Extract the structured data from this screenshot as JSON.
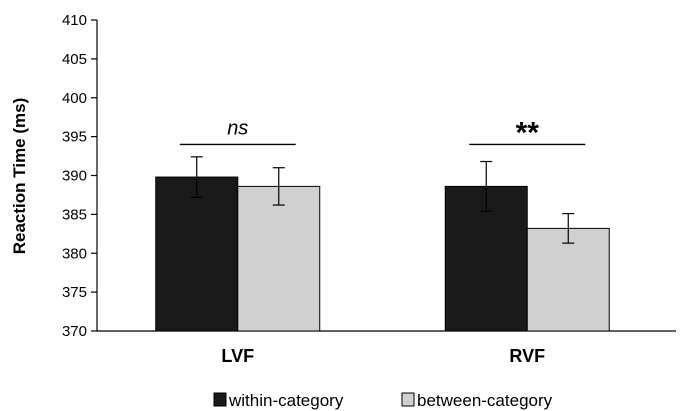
{
  "chart_data": {
    "type": "bar",
    "categories": [
      "LVF",
      "RVF"
    ],
    "series": [
      {
        "name": "within-category",
        "values": [
          389.8,
          388.6
        ],
        "error": [
          2.6,
          3.2
        ],
        "color": "#1a1a1a"
      },
      {
        "name": "between-category",
        "values": [
          388.6,
          383.2
        ],
        "error": [
          2.4,
          1.9
        ],
        "color": "#d0d0d0"
      }
    ],
    "ylabel": "Reaction Time (ms)",
    "ylim": [
      370,
      410
    ],
    "yticks": [
      370,
      375,
      380,
      385,
      390,
      395,
      400,
      405,
      410
    ],
    "annotations": [
      {
        "category": "LVF",
        "text": "ns",
        "bracket_y": 394
      },
      {
        "category": "RVF",
        "text": "**",
        "bracket_y": 394
      }
    ],
    "grid": false,
    "legend": "bottom"
  }
}
